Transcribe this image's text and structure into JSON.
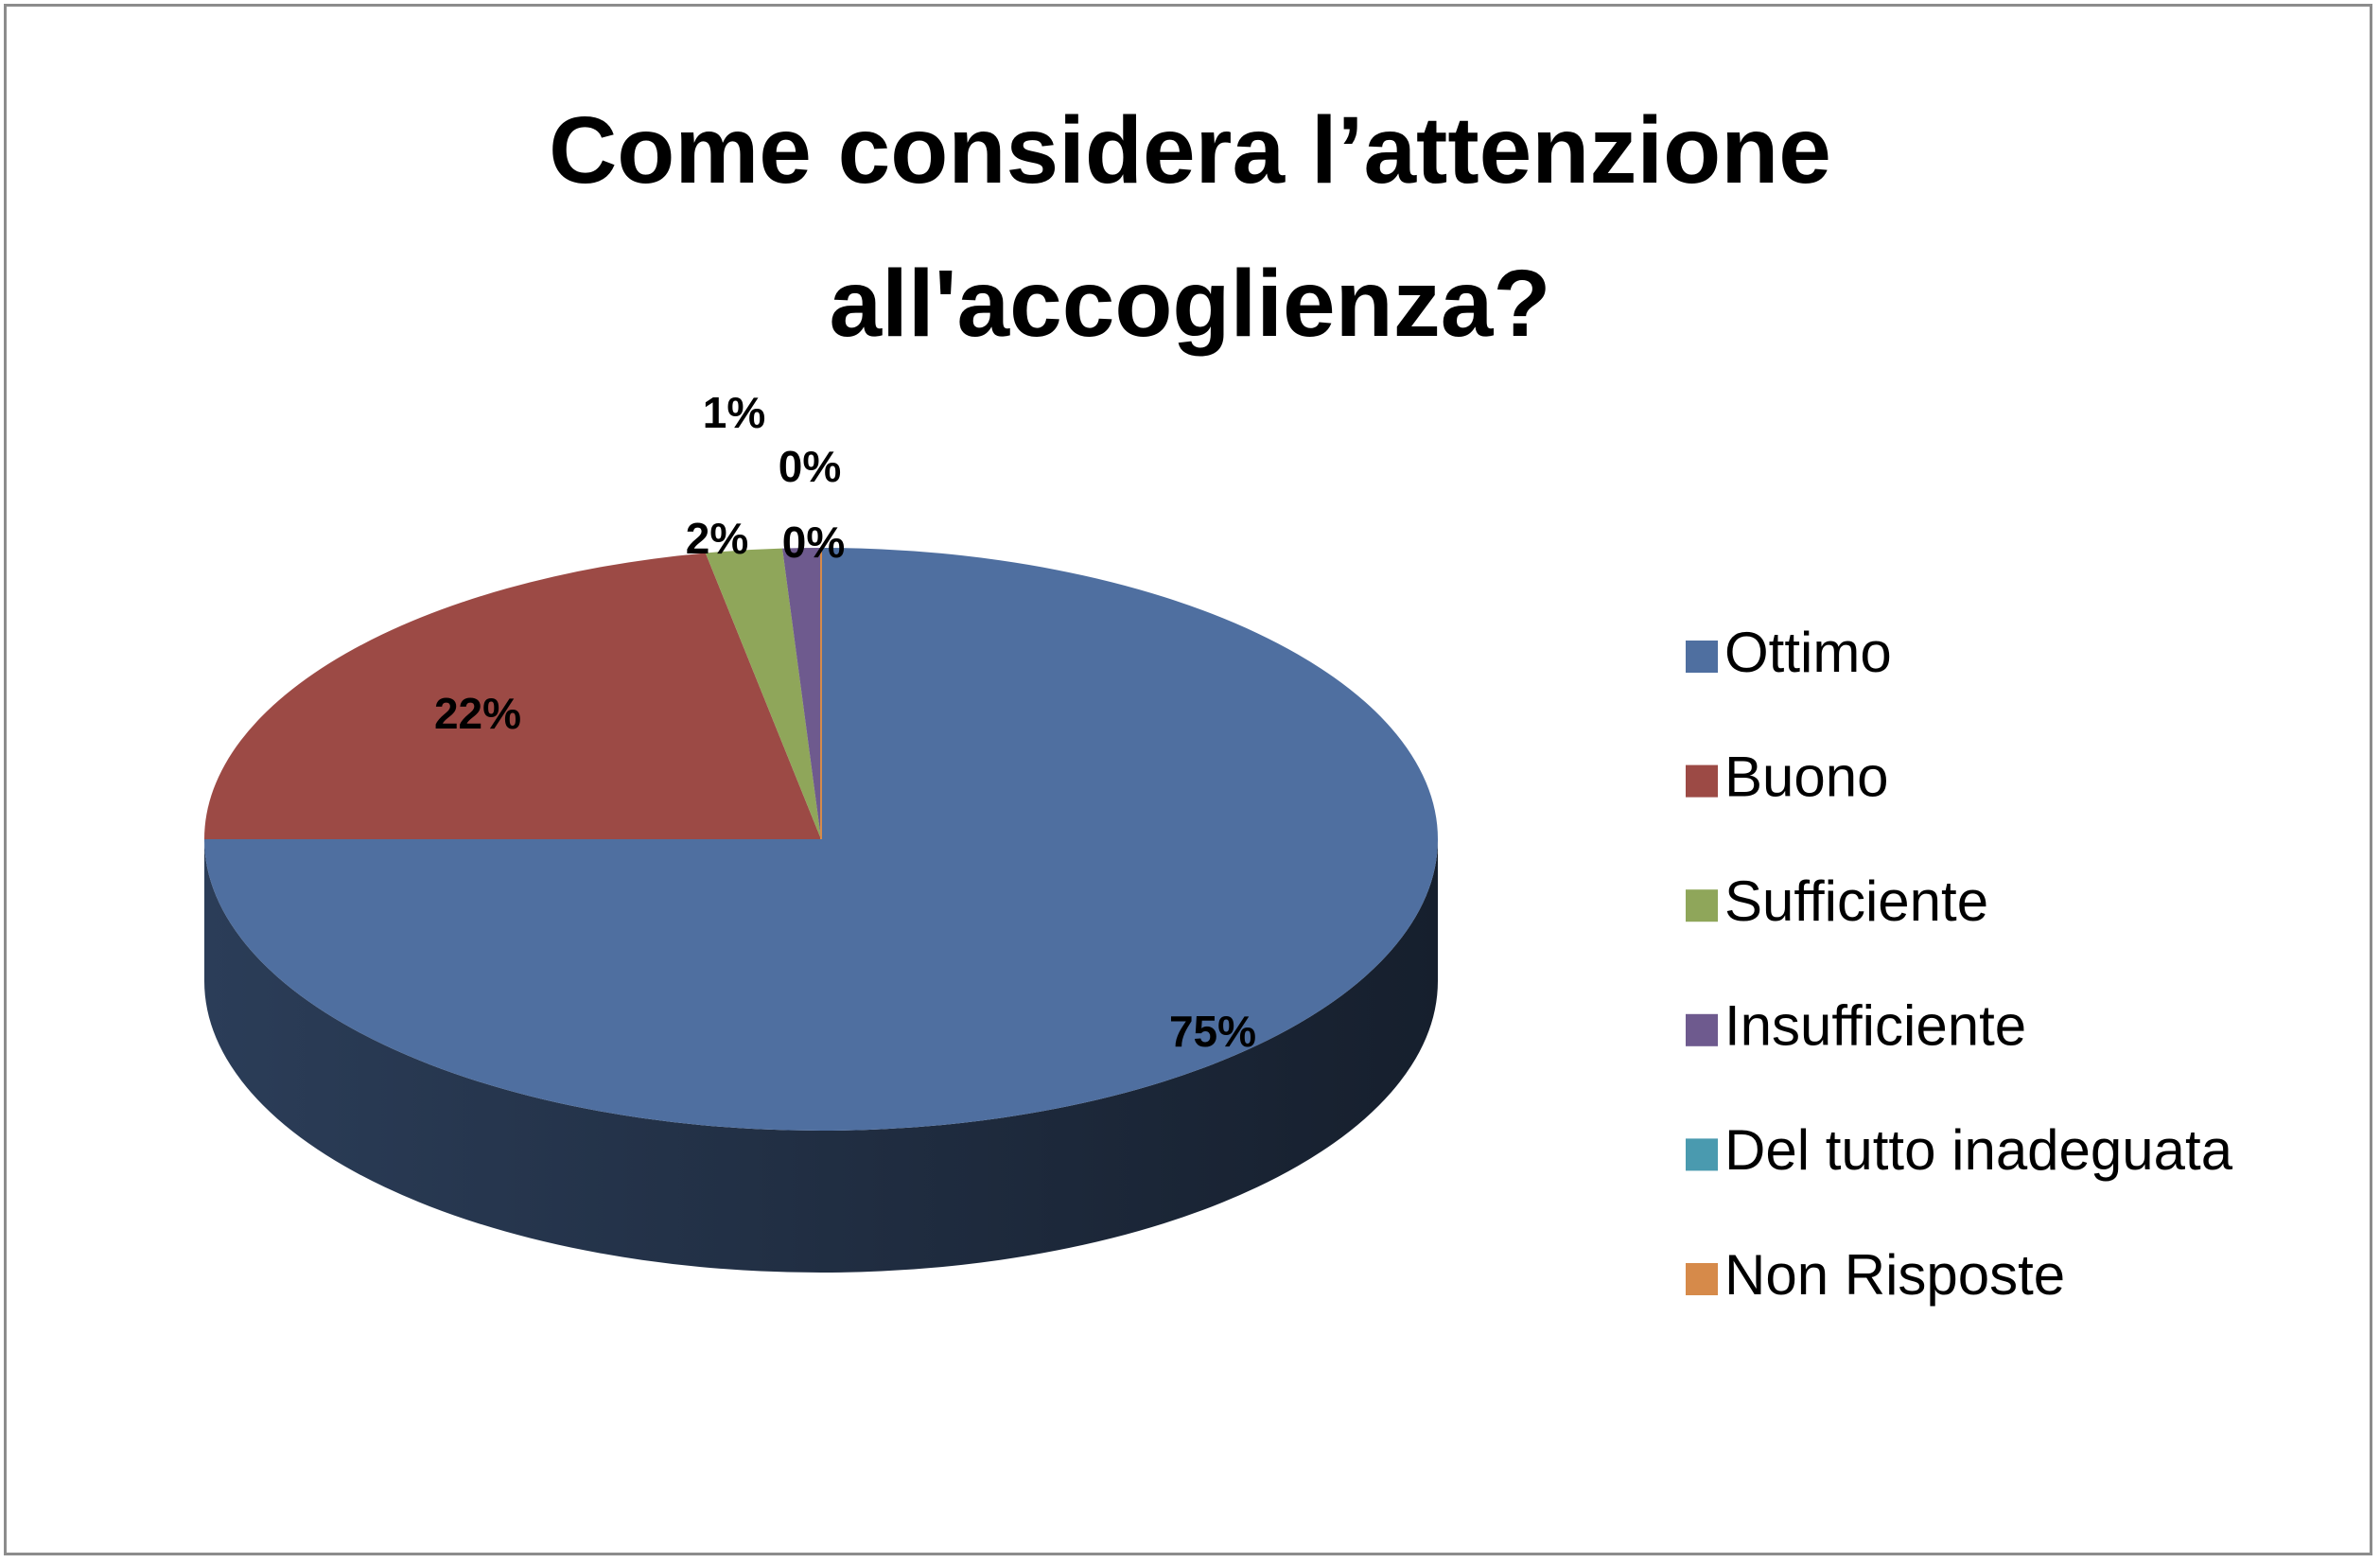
{
  "chart_data": {
    "type": "pie3d",
    "title": "Come considera l’attenzione all'accoglienza?",
    "categories": [
      "Ottimo",
      "Buono",
      "Sufficiente",
      "Insufficiente",
      "Del tutto inadeguata",
      "Non Risposte"
    ],
    "values": [
      75,
      22,
      2,
      1,
      0,
      0
    ],
    "value_labels": [
      "75%",
      "22%",
      "2%",
      "1%",
      "0%",
      "0%"
    ],
    "colors": [
      "#4F6FA0",
      "#9C4A45",
      "#8FA65A",
      "#6E5A8E",
      "#4A9AAF",
      "#D68A4A"
    ],
    "legend": "right"
  }
}
